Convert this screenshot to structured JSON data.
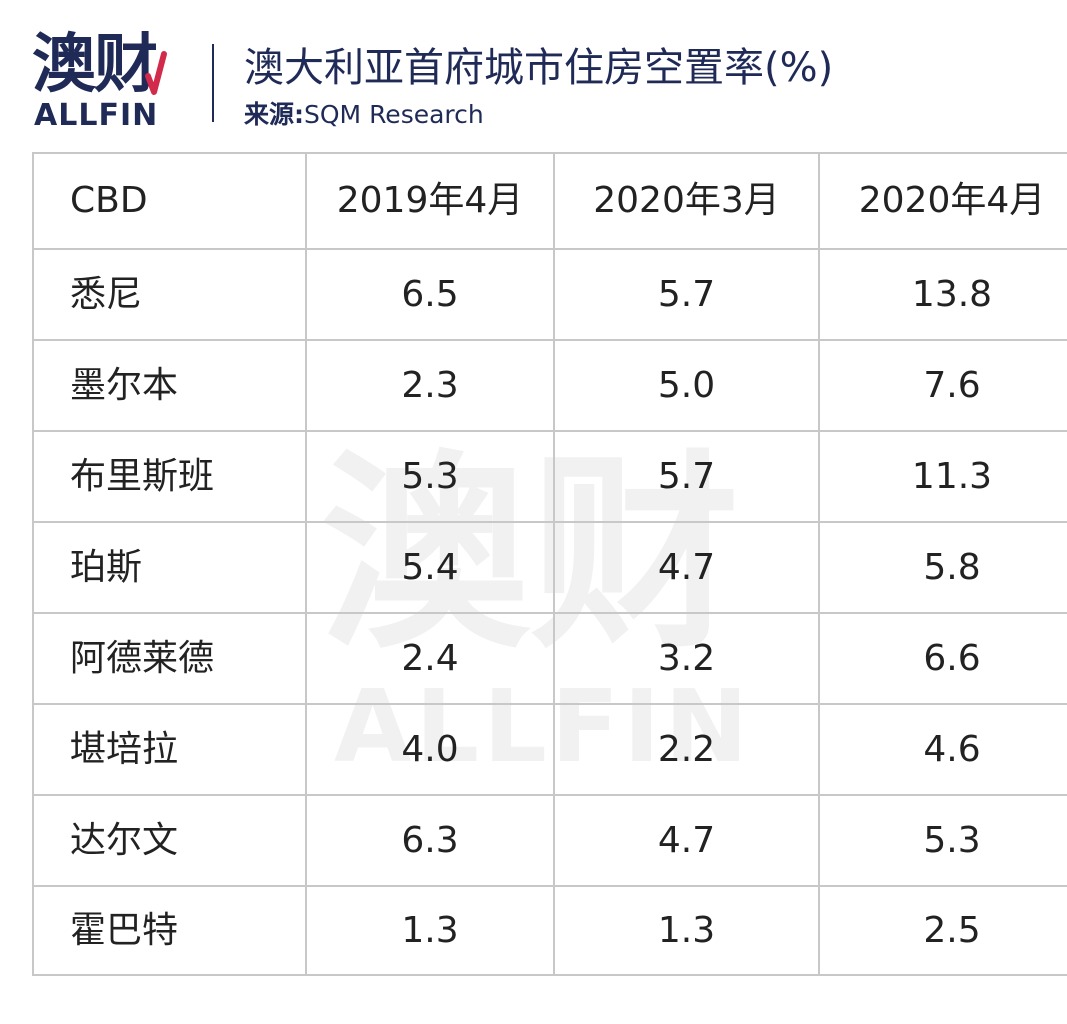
{
  "brand": {
    "cn": "澳财",
    "en": "ALLFIN",
    "accent": "#1f2a57",
    "mark_color": "#d12a4b"
  },
  "header": {
    "title": "澳大利亚首府城市住房空置率(%)",
    "source_label": "来源:",
    "source_value": "SQM Research"
  },
  "chart_data": {
    "type": "table",
    "columns": [
      "CBD",
      "2019年4月",
      "2020年3月",
      "2020年4月"
    ],
    "rows": [
      [
        "悉尼",
        "6.5",
        "5.7",
        "13.8"
      ],
      [
        "墨尔本",
        "2.3",
        "5.0",
        "7.6"
      ],
      [
        "布里斯班",
        "5.3",
        "5.7",
        "11.3"
      ],
      [
        "珀斯",
        "5.4",
        "4.7",
        "5.8"
      ],
      [
        "阿德莱德",
        "2.4",
        "3.2",
        "6.6"
      ],
      [
        "堪培拉",
        "4.0",
        "2.2",
        "4.6"
      ],
      [
        "达尔文",
        "6.3",
        "4.7",
        "5.3"
      ],
      [
        "霍巴特",
        "1.3",
        "1.3",
        "2.5"
      ]
    ],
    "grid": true
  }
}
